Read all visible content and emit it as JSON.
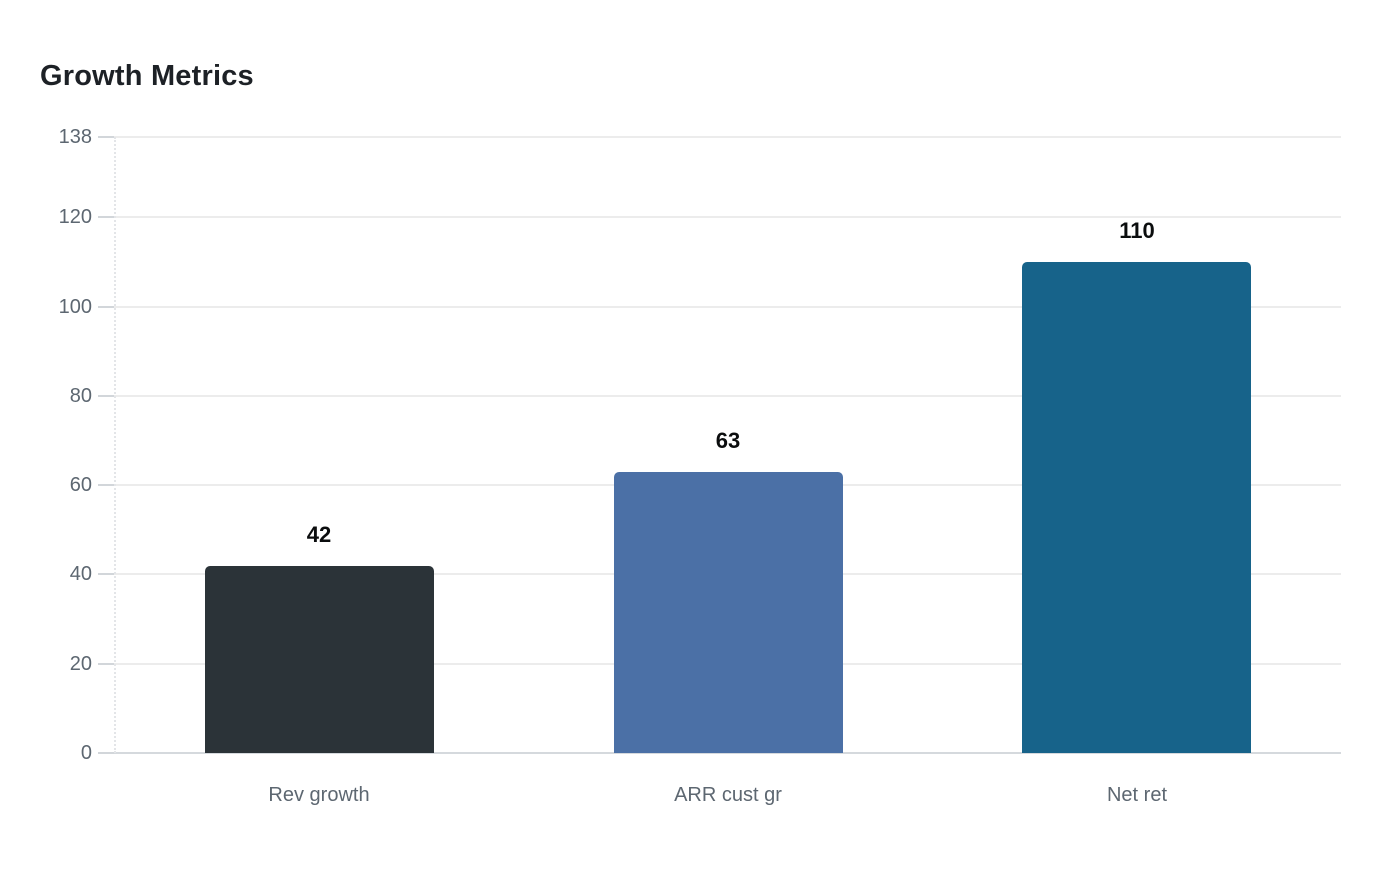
{
  "page": {
    "background_color": "#ffffff"
  },
  "chart_data": {
    "type": "bar",
    "title": "Growth Metrics",
    "categories": [
      "Rev growth",
      "ARR cust gr",
      "Net ret"
    ],
    "values": [
      42,
      63,
      110
    ],
    "value_labels": [
      "42",
      "63",
      "110"
    ],
    "bar_colors": [
      "#2b3338",
      "#4b70a6",
      "#17638a"
    ],
    "yticks": [
      0,
      20,
      40,
      60,
      80,
      100,
      120,
      138
    ],
    "ytick_labels": [
      "0",
      "20",
      "40",
      "60",
      "80",
      "100",
      "120",
      "138"
    ],
    "ylim": [
      0,
      138
    ],
    "xlabel": "",
    "ylabel": "",
    "grid": true,
    "legend": false,
    "colors": {
      "title": "#1d2126",
      "axis_label": "#5d6771",
      "value_label": "#0b0d0e",
      "gridline": "#ececec",
      "baseline": "#d5d9dd",
      "tick_mark": "#d2d6da",
      "axis_dotted_line": "#e3e5e8",
      "background": "#ffffff"
    }
  }
}
